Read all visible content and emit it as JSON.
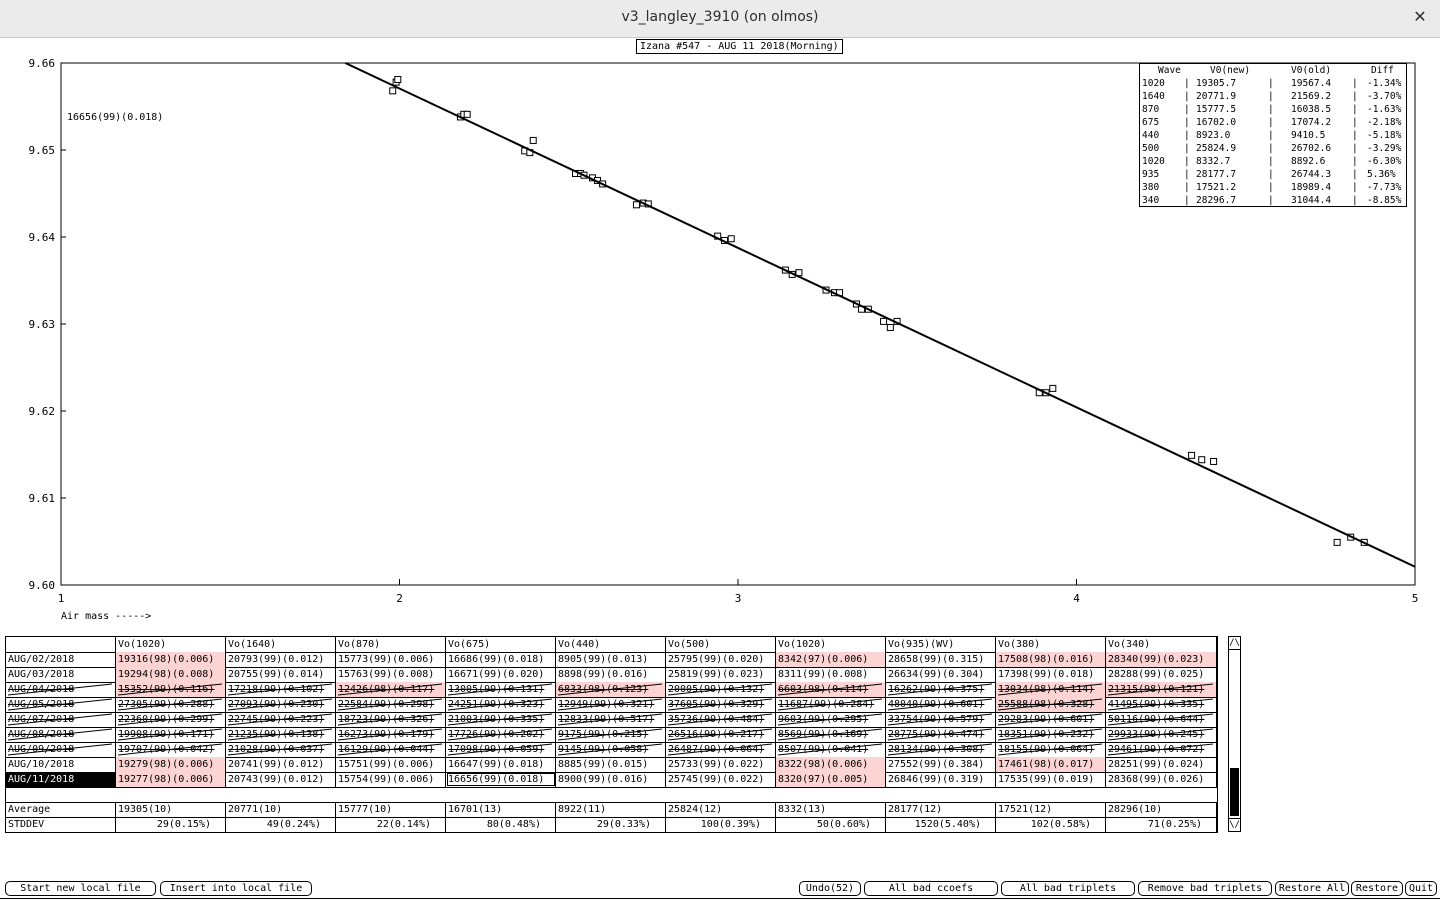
{
  "window": {
    "title": "v3_langley_3910 (on olmos)",
    "close_label": "✕"
  },
  "plot": {
    "title": "Izana #547 - AUG 11 2018(Morning)",
    "annotation": "16656(99)(0.018)",
    "xlabel": "Air mass ----->"
  },
  "chart_data": {
    "type": "scatter",
    "xlim": [
      1,
      5
    ],
    "ylim": [
      9.6,
      9.66
    ],
    "x_ticks": [
      "1",
      "2",
      "3",
      "4",
      "5"
    ],
    "y_ticks": [
      "9.60",
      "9.61",
      "9.62",
      "9.63",
      "9.64",
      "9.65",
      "9.66"
    ],
    "fit_line": {
      "x": [
        1.84,
        5.0
      ],
      "y": [
        9.66,
        9.6021
      ]
    },
    "points": [
      [
        1.98,
        9.6568
      ],
      [
        1.99,
        9.6578
      ],
      [
        1.995,
        9.6581
      ],
      [
        2.18,
        9.6538
      ],
      [
        2.19,
        9.6541
      ],
      [
        2.2,
        9.6541
      ],
      [
        2.37,
        9.6499
      ],
      [
        2.385,
        9.6497
      ],
      [
        2.395,
        9.6511
      ],
      [
        2.52,
        9.6473
      ],
      [
        2.535,
        9.6473
      ],
      [
        2.545,
        9.6471
      ],
      [
        2.57,
        9.6468
      ],
      [
        2.585,
        9.6465
      ],
      [
        2.6,
        9.6461
      ],
      [
        2.7,
        9.6437
      ],
      [
        2.72,
        9.6439
      ],
      [
        2.735,
        9.6438
      ],
      [
        2.94,
        9.6401
      ],
      [
        2.96,
        9.6396
      ],
      [
        2.98,
        9.6398
      ],
      [
        3.14,
        9.6362
      ],
      [
        3.16,
        9.6357
      ],
      [
        3.18,
        9.6359
      ],
      [
        3.26,
        9.6339
      ],
      [
        3.285,
        9.6336
      ],
      [
        3.3,
        9.6336
      ],
      [
        3.35,
        9.6323
      ],
      [
        3.365,
        9.6317
      ],
      [
        3.385,
        9.6317
      ],
      [
        3.43,
        9.6303
      ],
      [
        3.45,
        9.6296
      ],
      [
        3.47,
        9.6303
      ],
      [
        3.89,
        9.6221
      ],
      [
        3.91,
        9.6221
      ],
      [
        3.93,
        9.6226
      ],
      [
        4.34,
        9.6149
      ],
      [
        4.37,
        9.6144
      ],
      [
        4.405,
        9.6142
      ],
      [
        4.77,
        9.6049
      ],
      [
        4.81,
        9.6055
      ],
      [
        4.85,
        9.6049
      ]
    ]
  },
  "legend": {
    "headers": [
      "Wave",
      "V0(new)",
      "V0(old)",
      "Diff"
    ],
    "rows": [
      [
        "1020",
        "19305.7",
        "19567.4",
        "-1.34%"
      ],
      [
        "1640",
        "20771.9",
        "21569.2",
        "-3.70%"
      ],
      [
        "870",
        "15777.5",
        "16038.5",
        "-1.63%"
      ],
      [
        "675",
        "16702.0",
        "17074.2",
        "-2.18%"
      ],
      [
        "440",
        "8923.0",
        "9410.5",
        "-5.18%"
      ],
      [
        "500",
        "25824.9",
        "26702.6",
        "-3.29%"
      ],
      [
        "1020",
        "8332.7",
        "8892.6",
        "-6.30%"
      ],
      [
        "935",
        "28177.7",
        "26744.3",
        "5.36%"
      ],
      [
        "380",
        "17521.2",
        "18989.4",
        "-7.73%"
      ],
      [
        "340",
        "28296.7",
        "31044.4",
        "-8.85%"
      ]
    ]
  },
  "grid": {
    "headers": [
      "",
      "Vo(1020)",
      "Vo(1640)",
      "Vo(870)",
      "Vo(675)",
      "Vo(440)",
      "Vo(500)",
      "Vo(1020)",
      "Vo(935)(WV)",
      "Vo(380)",
      "Vo(340)"
    ],
    "rows": [
      {
        "date": "AUG/02/2018",
        "struck": false,
        "selected": false,
        "cells": [
          "19316(98)(0.006)",
          "20793(99)(0.012)",
          "15773(99)(0.006)",
          "16686(99)(0.018)",
          "8905(99)(0.013)",
          "25795(99)(0.020)",
          "8342(97)(0.006)",
          "28658(99)(0.315)",
          "17508(98)(0.016)",
          "28340(99)(0.023)"
        ],
        "bad": [
          1,
          7,
          9,
          10
        ]
      },
      {
        "date": "AUG/03/2018",
        "struck": false,
        "selected": false,
        "cells": [
          "19294(98)(0.008)",
          "20755(99)(0.014)",
          "15763(99)(0.008)",
          "16671(99)(0.020)",
          "8898(99)(0.016)",
          "25819(99)(0.023)",
          "8311(99)(0.008)",
          "26634(99)(0.304)",
          "17398(99)(0.018)",
          "28288(99)(0.025)"
        ],
        "bad": [
          1
        ]
      },
      {
        "date": "AUG/04/2018",
        "struck": true,
        "selected": false,
        "cells": [
          "15352(99)(0.116)",
          "17218(99)(0.102)",
          "12426(98)(0.117)",
          "13005(99)(0.131)",
          "6833(98)(0.123)",
          "20005(99)(0.132)",
          "6603(98)(0.114)",
          "16262(99)(0.375)",
          "13034(98)(0.114)",
          "21315(98)(0.121)"
        ],
        "bad": [
          1,
          3,
          5,
          7,
          9,
          10
        ]
      },
      {
        "date": "AUG/05/2018",
        "struck": true,
        "selected": false,
        "cells": [
          "27305(99)(0.288)",
          "27093(99)(0.230)",
          "22584(99)(0.298)",
          "24251(99)(0.323)",
          "12949(99)(0.321)",
          "37605(99)(0.329)",
          "11687(99)(0.284)",
          "48040(99)(0.601)",
          "25588(98)(0.328)",
          "41495(99)(0.335)"
        ],
        "bad": [
          9
        ]
      },
      {
        "date": "AUG/07/2018",
        "struck": true,
        "selected": false,
        "cells": [
          "22360(99)(0.299)",
          "22745(99)(0.223)",
          "18723(99)(0.326)",
          "21003(99)(0.335)",
          "12833(99)(0.517)",
          "35736(99)(0.484)",
          "9603(99)(0.295)",
          "33754(99)(0.579)",
          "29283(99)(0.601)",
          "50116(99)(0.644)"
        ],
        "bad": []
      },
      {
        "date": "AUG/08/2018",
        "struck": true,
        "selected": false,
        "cells": [
          "19908(99)(0.171)",
          "21235(99)(0.138)",
          "16273(99)(0.179)",
          "17726(99)(0.202)",
          "9175(99)(0.215)",
          "26516(99)(0.217)",
          "8569(99)(0.169)",
          "28775(99)(0.474)",
          "18351(99)(0.232)",
          "29933(99)(0.245)"
        ],
        "bad": []
      },
      {
        "date": "AUG/09/2018",
        "struck": true,
        "selected": false,
        "cells": [
          "19707(99)(0.042)",
          "21028(99)(0.037)",
          "16129(99)(0.044)",
          "17098(99)(0.059)",
          "9145(99)(0.058)",
          "26487(99)(0.064)",
          "8507(99)(0.041)",
          "28134(99)(0.308)",
          "18155(99)(0.064)",
          "29461(99)(0.072)"
        ],
        "bad": []
      },
      {
        "date": "AUG/10/2018",
        "struck": false,
        "selected": false,
        "cells": [
          "19279(98)(0.006)",
          "20741(99)(0.012)",
          "15751(99)(0.006)",
          "16647(99)(0.018)",
          "8885(99)(0.015)",
          "25733(99)(0.022)",
          "8322(98)(0.006)",
          "27552(99)(0.384)",
          "17461(98)(0.017)",
          "28251(99)(0.024)"
        ],
        "bad": [
          1,
          7,
          9
        ]
      },
      {
        "date": "AUG/11/2018",
        "struck": false,
        "selected": true,
        "cells": [
          "19277(98)(0.006)",
          "20743(99)(0.012)",
          "15754(99)(0.006)",
          "16656(99)(0.018)",
          "8900(99)(0.016)",
          "25745(99)(0.022)",
          "8320(97)(0.005)",
          "26846(99)(0.319)",
          "17535(99)(0.019)",
          "28368(99)(0.026)"
        ],
        "bad": [
          1,
          7
        ],
        "boxed": [
          4
        ]
      }
    ],
    "average": {
      "label": "Average",
      "cells": [
        "19305(10)",
        "20771(10)",
        "15777(10)",
        "16701(13)",
        "8922(11)",
        "25824(12)",
        "8332(13)",
        "28177(12)",
        "17521(12)",
        "28296(10)"
      ]
    },
    "stddev": {
      "label": "STDDEV",
      "cells": [
        "29(0.15%)",
        "49(0.24%)",
        "22(0.14%)",
        "80(0.48%)",
        "29(0.33%)",
        "100(0.39%)",
        "50(0.60%)",
        "1520(5.40%)",
        "102(0.58%)",
        "71(0.25%)"
      ]
    }
  },
  "scroll": {
    "up": "/\\",
    "down": "\\/"
  },
  "buttons": {
    "start_new": "Start new local file",
    "insert": "Insert into local file",
    "undo": "Undo(52)",
    "all_bad_ccoefs": "All bad ccoefs",
    "all_bad_triplets": "All bad triplets",
    "remove_bad": "Remove bad triplets",
    "restore_all": "Restore All",
    "restore": "Restore",
    "quit": "Quit"
  }
}
